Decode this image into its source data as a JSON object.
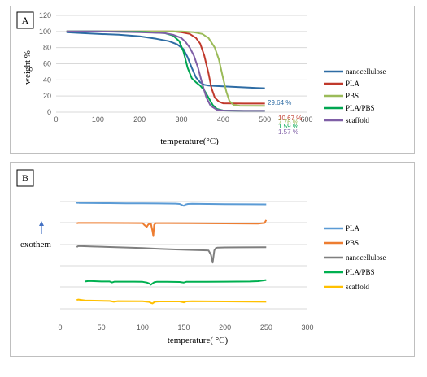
{
  "chart_data": [
    {
      "type": "line",
      "panel_label": "A",
      "xlabel": "temperature(°C)",
      "ylabel": "weight %",
      "xlim": [
        0,
        600
      ],
      "ylim": [
        0,
        120
      ],
      "xticks": [
        0,
        100,
        200,
        300,
        400,
        500,
        600
      ],
      "xtick_labels": [
        "0",
        "100",
        "200",
        "300",
        "400",
        "500",
        "600"
      ],
      "yticks": [
        0,
        20,
        40,
        60,
        80,
        100,
        120
      ],
      "grid": "horizontal",
      "legend_position": "right",
      "series": [
        {
          "name": "nanocellulose",
          "color": "#2e6ca4",
          "x": [
            25,
            60,
            100,
            150,
            200,
            240,
            270,
            290,
            305,
            315,
            325,
            335,
            345,
            355,
            365,
            380,
            400,
            440,
            480,
            500
          ],
          "y": [
            99,
            98,
            97,
            96,
            94,
            91,
            88,
            84,
            78,
            68,
            55,
            43,
            37,
            34,
            33,
            32.5,
            32,
            31,
            30,
            29.64
          ]
        },
        {
          "name": "PLA",
          "color": "#c0392b",
          "x": [
            25,
            100,
            200,
            280,
            300,
            320,
            335,
            345,
            355,
            365,
            372,
            380,
            390,
            400,
            450,
            500
          ],
          "y": [
            100,
            100,
            100,
            100,
            99,
            97,
            92,
            85,
            70,
            48,
            30,
            18,
            13,
            11,
            10.7,
            10.67
          ]
        },
        {
          "name": "PBS",
          "color": "#9bbb59",
          "x": [
            25,
            100,
            200,
            300,
            330,
            350,
            365,
            380,
            390,
            400,
            408,
            415,
            425,
            440,
            500
          ],
          "y": [
            100,
            100,
            100,
            100,
            99,
            97,
            92,
            80,
            65,
            42,
            25,
            14,
            9,
            8,
            7.76
          ]
        },
        {
          "name": "PLA/PBS",
          "color": "#00a651",
          "x": [
            25,
            100,
            200,
            260,
            280,
            295,
            305,
            315,
            325,
            335,
            345,
            355,
            365,
            375,
            385,
            400,
            450,
            500
          ],
          "y": [
            100,
            100,
            99.5,
            98,
            95,
            88,
            75,
            55,
            42,
            37,
            33,
            27,
            18,
            9,
            4,
            2,
            1.6,
            1.59
          ]
        },
        {
          "name": "scaffold",
          "color": "#7f5fa6",
          "x": [
            25,
            100,
            200,
            260,
            280,
            300,
            310,
            320,
            330,
            340,
            350,
            360,
            370,
            385,
            400,
            450,
            500
          ],
          "y": [
            100,
            100,
            99,
            98,
            96,
            92,
            87,
            80,
            70,
            55,
            35,
            18,
            8,
            3,
            2,
            1.6,
            1.57
          ]
        }
      ],
      "annotations": [
        {
          "text": "29.64 %",
          "color": "#2e6ca4"
        },
        {
          "text": "10.67 %",
          "color": "#c0392b"
        },
        {
          "text": "7.76 %",
          "color": "#9bbb59"
        },
        {
          "text": "1.59 %",
          "color": "#00a651"
        },
        {
          "text": "1.57 %",
          "color": "#7f5fa6"
        }
      ]
    },
    {
      "type": "line",
      "panel_label": "B",
      "xlabel": "temperature( °C)",
      "ylabel_annotation": "exothem",
      "xlim": [
        0,
        300
      ],
      "xticks": [
        0,
        50,
        100,
        150,
        200,
        250,
        300
      ],
      "xtick_labels": [
        "0",
        "50",
        "100",
        "150",
        "200",
        "250",
        "300"
      ],
      "grid": "horizontal",
      "legend_position": "right",
      "series": [
        {
          "name": "PLA",
          "color": "#5b9bd5",
          "x": [
            20,
            21,
            23,
            40,
            60,
            80,
            100,
            120,
            140,
            145,
            148,
            150,
            152,
            155,
            160,
            180,
            200,
            230,
            250
          ],
          "y": [
            0.6,
            1.5,
            1.0,
            0.9,
            0.8,
            0.7,
            0.6,
            0.5,
            0.3,
            0.0,
            -1.2,
            -2.0,
            -0.6,
            0.0,
            0.2,
            0.0,
            -0.2,
            -0.3,
            -0.4
          ]
        },
        {
          "name": "PBS",
          "color": "#ed7d31",
          "x": [
            20,
            22,
            50,
            80,
            100,
            102,
            105,
            107,
            110,
            112,
            113,
            114,
            116,
            130,
            160,
            200,
            240,
            248,
            250
          ],
          "y": [
            0.2,
            0.5,
            0.5,
            0.4,
            0.3,
            -1.5,
            -3.5,
            -1.0,
            0.0,
            -8.0,
            -13.0,
            -1.5,
            0.3,
            0.3,
            0.2,
            0.0,
            -0.2,
            0.5,
            3.5
          ]
        },
        {
          "name": "nanocellulose",
          "color": "#7f7f7f",
          "x": [
            20,
            22,
            40,
            60,
            80,
            100,
            120,
            140,
            160,
            180,
            183,
            185,
            187,
            189,
            191,
            200,
            220,
            250
          ],
          "y": [
            0.0,
            1.0,
            0.5,
            0.0,
            -0.5,
            -1.0,
            -1.8,
            -2.5,
            -3.0,
            -3.5,
            -8.0,
            -16.0,
            -3.5,
            -1.0,
            -0.6,
            -0.4,
            -0.3,
            -0.2
          ]
        },
        {
          "name": "PLA/PBS",
          "color": "#00b050",
          "x": [
            30,
            35,
            50,
            60,
            63,
            66,
            70,
            90,
            100,
            105,
            108,
            110,
            112,
            114,
            117,
            130,
            145,
            150,
            153,
            160,
            200,
            230,
            240,
            250
          ],
          "y": [
            0.5,
            1.0,
            0.5,
            0.5,
            -0.5,
            0.3,
            0.3,
            0.3,
            0.2,
            -0.6,
            -1.5,
            -2.8,
            -1.5,
            -0.3,
            0.2,
            0.2,
            0.0,
            -0.6,
            0.2,
            0.2,
            0.3,
            0.5,
            0.8,
            2.0
          ]
        },
        {
          "name": "scaffold",
          "color": "#ffc000",
          "x": [
            20,
            22,
            30,
            60,
            65,
            70,
            100,
            108,
            110,
            112,
            114,
            116,
            120,
            145,
            150,
            153,
            160,
            200,
            250
          ],
          "y": [
            1.5,
            2.0,
            1.0,
            0.5,
            -0.3,
            0.3,
            0.2,
            -0.5,
            -1.5,
            -2.0,
            -0.8,
            -0.2,
            0.0,
            0.0,
            -1.0,
            0.0,
            0.2,
            0.0,
            -0.3
          ]
        }
      ]
    }
  ]
}
